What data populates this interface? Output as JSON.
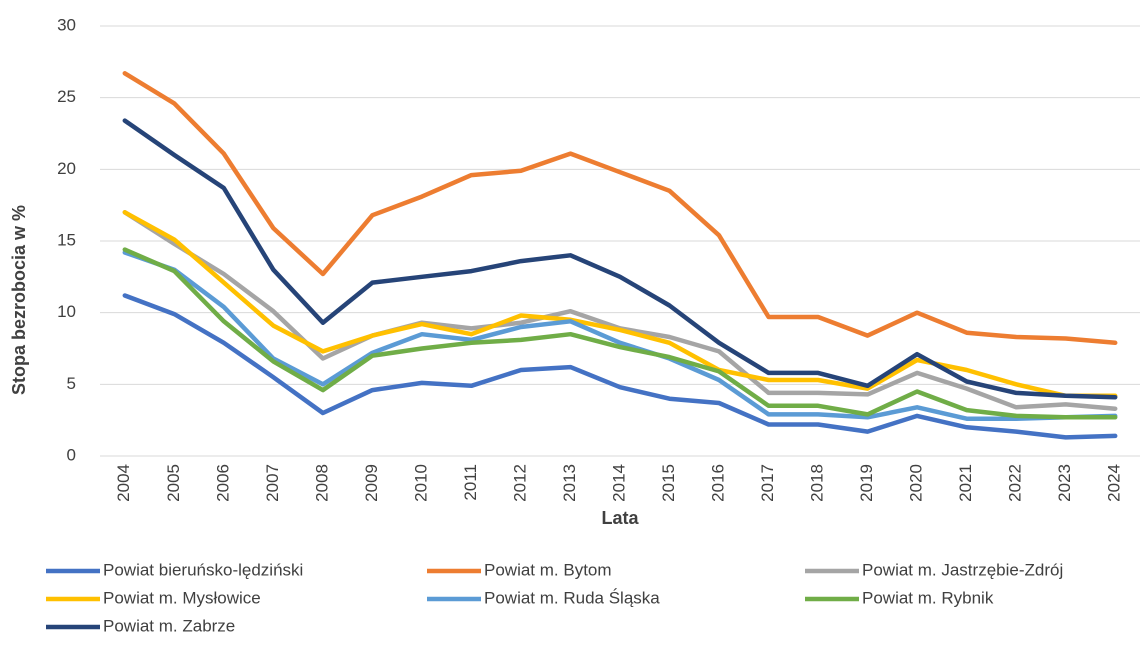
{
  "chart_data": {
    "type": "line",
    "x_label": "Lata",
    "y_label": "Stopa bezrobocia w %",
    "categories": [
      "2004",
      "2005",
      "2006",
      "2007",
      "2008",
      "2009",
      "2010",
      "2011",
      "2012",
      "2013",
      "2014",
      "2015",
      "2016",
      "2017",
      "2018",
      "2019",
      "2020",
      "2021",
      "2022",
      "2023",
      "2024"
    ],
    "ylim": [
      0,
      30
    ],
    "yticks": [
      0,
      5,
      10,
      15,
      20,
      25,
      30
    ],
    "grid": true,
    "legend": "bottom",
    "series": [
      {
        "name": "Powiat bieruńsko-lędziński",
        "color": "#4472c4",
        "values": [
          11.2,
          9.9,
          7.9,
          5.5,
          3.0,
          4.6,
          5.1,
          4.9,
          6.0,
          6.2,
          4.8,
          4.0,
          3.7,
          2.2,
          2.2,
          1.7,
          2.8,
          2.0,
          1.7,
          1.3,
          1.4
        ]
      },
      {
        "name": "Powiat m. Bytom",
        "color": "#ed7d31",
        "values": [
          26.7,
          24.6,
          21.1,
          15.9,
          12.7,
          16.8,
          18.1,
          19.6,
          19.9,
          21.1,
          19.8,
          18.5,
          15.4,
          9.7,
          9.7,
          8.4,
          10.0,
          8.6,
          8.3,
          8.2,
          7.9
        ]
      },
      {
        "name": "Powiat m. Jastrzębie-Zdrój",
        "color": "#a5a5a5",
        "values": [
          17.0,
          14.8,
          12.7,
          10.1,
          6.8,
          8.4,
          9.3,
          8.9,
          9.3,
          10.1,
          8.9,
          8.3,
          7.3,
          4.4,
          4.4,
          4.3,
          5.8,
          4.7,
          3.4,
          3.6,
          3.3
        ]
      },
      {
        "name": "Powiat m. Mysłowice",
        "color": "#ffc000",
        "values": [
          17.0,
          15.1,
          12.1,
          9.1,
          7.3,
          8.4,
          9.2,
          8.5,
          9.8,
          9.5,
          8.8,
          7.9,
          6.0,
          5.3,
          5.3,
          4.7,
          6.7,
          6.0,
          5.0,
          4.2,
          4.2
        ]
      },
      {
        "name": "Powiat m. Ruda Śląska",
        "color": "#5b9bd5",
        "values": [
          14.2,
          13.0,
          10.4,
          6.8,
          5.0,
          7.2,
          8.5,
          8.1,
          9.0,
          9.4,
          7.9,
          6.8,
          5.3,
          2.9,
          2.9,
          2.7,
          3.4,
          2.6,
          2.6,
          2.7,
          2.8
        ]
      },
      {
        "name": "Powiat m. Rybnik",
        "color": "#70ad47",
        "values": [
          14.4,
          12.9,
          9.4,
          6.6,
          4.6,
          7.0,
          7.5,
          7.9,
          8.1,
          8.5,
          7.6,
          6.9,
          5.9,
          3.5,
          3.5,
          2.9,
          4.5,
          3.2,
          2.8,
          2.7,
          2.7
        ]
      },
      {
        "name": "Powiat m. Zabrze",
        "color": "#264478",
        "values": [
          23.4,
          21.0,
          18.7,
          13.0,
          9.3,
          12.1,
          12.5,
          12.9,
          13.6,
          14.0,
          12.5,
          10.5,
          7.9,
          5.8,
          5.8,
          4.9,
          7.1,
          5.2,
          4.4,
          4.2,
          4.1
        ]
      }
    ]
  }
}
